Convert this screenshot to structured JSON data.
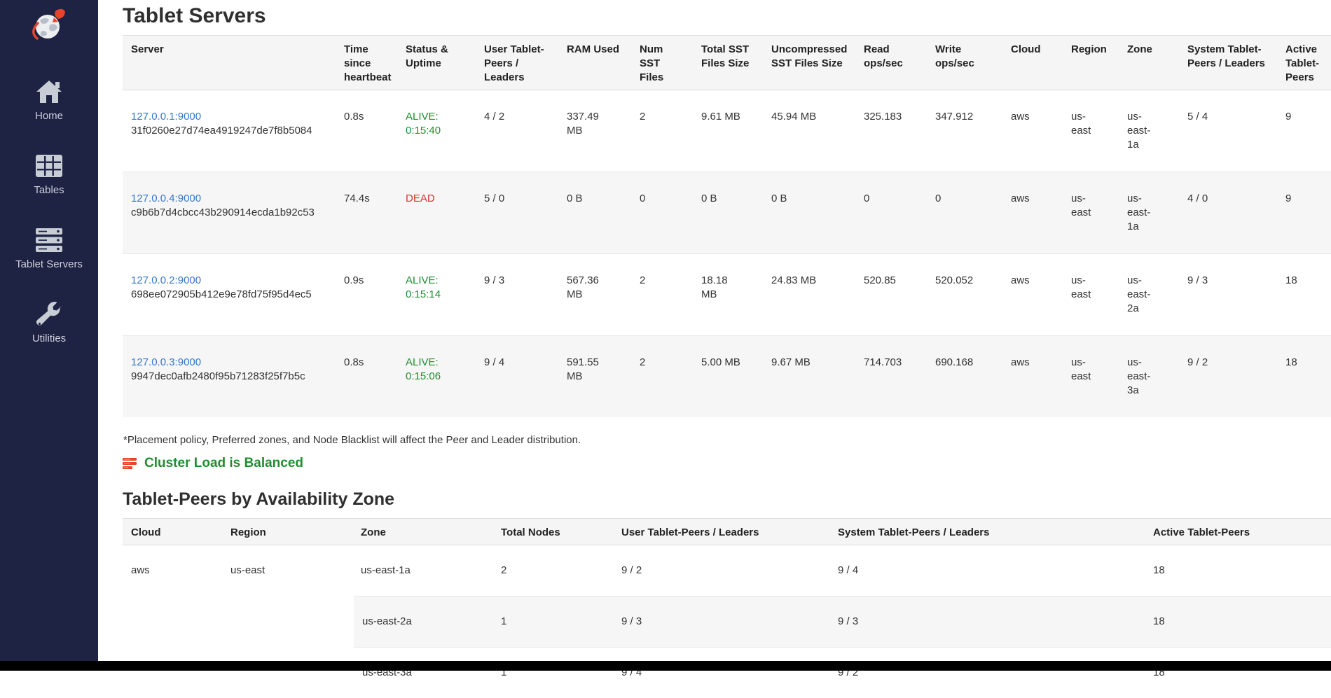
{
  "sidebar": {
    "logo_icon": "yugabyte-globe-rocket-icon",
    "items": [
      {
        "label": "Home",
        "icon": "home-icon"
      },
      {
        "label": "Tables",
        "icon": "tables-icon"
      },
      {
        "label": "Tablet Servers",
        "icon": "tablet-servers-icon"
      },
      {
        "label": "Utilities",
        "icon": "utilities-icon"
      }
    ]
  },
  "page": {
    "title": "Tablet Servers",
    "footnote": "*Placement policy, Preferred zones, and Node Blacklist will affect the Peer and Leader distribution.",
    "cluster_load": {
      "icon": "load-balancer-icon",
      "label": "Cluster Load is Balanced"
    },
    "section2_title": "Tablet-Peers by Availability Zone"
  },
  "servers_table": {
    "columns": [
      "Server",
      "Time since heartbeat",
      "Status & Uptime",
      "User Tablet-Peers / Leaders",
      "RAM Used",
      "Num SST Files",
      "Total SST Files Size",
      "Uncompressed SST Files Size",
      "Read ops/sec",
      "Write ops/sec",
      "Cloud",
      "Region",
      "Zone",
      "System Tablet-Peers / Leaders",
      "Active Tablet-Peers"
    ],
    "rows": [
      {
        "server": "127.0.0.1:9000",
        "uuid": "31f0260e27d74ea4919247de7f8b5084",
        "heartbeat": "0.8s",
        "status": "ALIVE:",
        "uptime": "0:15:40",
        "alive": true,
        "user_peers": "4 / 2",
        "ram": "337.49 MB",
        "num_sst": "2",
        "total_sst": "9.61 MB",
        "uncompressed_sst": "45.94 MB",
        "read_ops": "325.183",
        "write_ops": "347.912",
        "cloud": "aws",
        "region": "us-east",
        "zone": "us-east-1a",
        "system_peers": "5 / 4",
        "active_peers": "9"
      },
      {
        "server": "127.0.0.4:9000",
        "uuid": "c9b6b7d4cbcc43b290914ecda1b92c53",
        "heartbeat": "74.4s",
        "status": "DEAD",
        "uptime": "",
        "alive": false,
        "user_peers": "5 / 0",
        "ram": "0 B",
        "num_sst": "0",
        "total_sst": "0 B",
        "uncompressed_sst": "0 B",
        "read_ops": "0",
        "write_ops": "0",
        "cloud": "aws",
        "region": "us-east",
        "zone": "us-east-1a",
        "system_peers": "4 / 0",
        "active_peers": "9"
      },
      {
        "server": "127.0.0.2:9000",
        "uuid": "698ee072905b412e9e78fd75f95d4ec5",
        "heartbeat": "0.9s",
        "status": "ALIVE:",
        "uptime": "0:15:14",
        "alive": true,
        "user_peers": "9 / 3",
        "ram": "567.36 MB",
        "num_sst": "2",
        "total_sst": "18.18 MB",
        "uncompressed_sst": "24.83 MB",
        "read_ops": "520.85",
        "write_ops": "520.052",
        "cloud": "aws",
        "region": "us-east",
        "zone": "us-east-2a",
        "system_peers": "9 / 3",
        "active_peers": "18"
      },
      {
        "server": "127.0.0.3:9000",
        "uuid": "9947dec0afb2480f95b71283f25f7b5c",
        "heartbeat": "0.8s",
        "status": "ALIVE:",
        "uptime": "0:15:06",
        "alive": true,
        "user_peers": "9 / 4",
        "ram": "591.55 MB",
        "num_sst": "2",
        "total_sst": "5.00 MB",
        "uncompressed_sst": "9.67 MB",
        "read_ops": "714.703",
        "write_ops": "690.168",
        "cloud": "aws",
        "region": "us-east",
        "zone": "us-east-3a",
        "system_peers": "9 / 2",
        "active_peers": "18"
      }
    ]
  },
  "az_table": {
    "columns": [
      "Cloud",
      "Region",
      "Zone",
      "Total Nodes",
      "User Tablet-Peers / Leaders",
      "System Tablet-Peers / Leaders",
      "Active Tablet-Peers"
    ],
    "cloud": "aws",
    "region": "us-east",
    "rows": [
      {
        "zone": "us-east-1a",
        "total_nodes": "2",
        "user_peers": "9 / 2",
        "system_peers": "9 / 4",
        "active_peers": "18"
      },
      {
        "zone": "us-east-2a",
        "total_nodes": "1",
        "user_peers": "9 / 3",
        "system_peers": "9 / 3",
        "active_peers": "18"
      },
      {
        "zone": "us-east-3a",
        "total_nodes": "1",
        "user_peers": "9 / 4",
        "system_peers": "9 / 2",
        "active_peers": "18"
      }
    ]
  },
  "colors": {
    "sidebar_bg": "#1e2243",
    "link": "#3577c9",
    "alive_green": "#1e8e2e",
    "dead_red": "#d9342b",
    "accent_orange": "#e8432c",
    "stripe_gray": "#f6f6f6",
    "header_gray": "#f5f5f5"
  }
}
